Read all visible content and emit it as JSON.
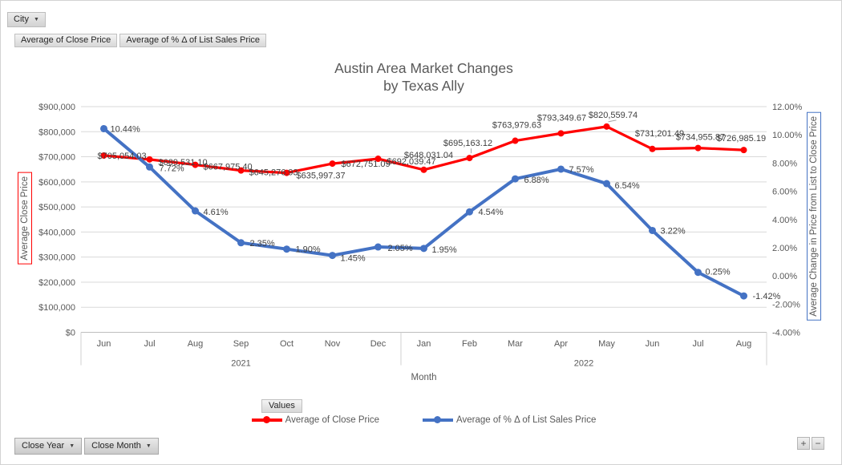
{
  "pivot": {
    "city_button": {
      "label": "City"
    },
    "field_buttons": [
      "Average of Close Price",
      "Average of % Δ of List Sales Price"
    ],
    "values_button": {
      "label": "Values"
    },
    "axis_buttons": [
      "Close Year",
      "Close Month"
    ],
    "expand_button": "+",
    "collapse_button": "−"
  },
  "chart_data": {
    "type": "line",
    "title": "Austin Area Market Changes",
    "subtitle": "by Texas Ally",
    "xlabel": "Month",
    "grid": true,
    "legend_position": "bottom",
    "categories": [
      "Jun",
      "Jul",
      "Aug",
      "Sep",
      "Oct",
      "Nov",
      "Dec",
      "Jan",
      "Feb",
      "Mar",
      "Apr",
      "May",
      "Jun",
      "Jul",
      "Aug"
    ],
    "year_groups": [
      {
        "label": "2021",
        "span": 7
      },
      {
        "label": "2022",
        "span": 8
      }
    ],
    "left_axis": {
      "title": "Average Close Price",
      "min": 0,
      "max": 900000,
      "step": 100000,
      "ticks": [
        "$0",
        "$100,000",
        "$200,000",
        "$300,000",
        "$400,000",
        "$500,000",
        "$600,000",
        "$700,000",
        "$800,000",
        "$900,000"
      ],
      "box_color": "#FF0000"
    },
    "right_axis": {
      "title": "Average Change in Price from List to Close Price",
      "min": -4,
      "max": 12,
      "step": 2,
      "ticks": [
        "-4.00%",
        "-2.00%",
        "0.00%",
        "2.00%",
        "4.00%",
        "6.00%",
        "8.00%",
        "10.00%",
        "12.00%"
      ],
      "box_color": "#4472C4"
    },
    "series": [
      {
        "name": "Average of Close Price",
        "axis": "left",
        "color": "#FF0000",
        "values": [
          705054.03,
          689531.1,
          667975.4,
          645276.93,
          635997.37,
          672751.09,
          692039.47,
          648031.04,
          695163.12,
          763979.63,
          793349.67,
          820559.74,
          731201.49,
          734955.87,
          726985.19
        ],
        "labels": [
          "$705,054.03",
          "$689,531.10",
          "$667,975.40",
          "$645,276.93",
          "$635,997.37",
          "$672,751.09",
          "$692,039.47",
          "$648,031.04",
          "$695,163.12",
          "$763,979.63",
          "$793,349.67",
          "$820,559.74",
          "$731,201.49",
          "$734,955.87",
          "$726,985.19"
        ]
      },
      {
        "name": "Average of % Δ of List Sales Price",
        "axis": "right",
        "color": "#4472C4",
        "values": [
          10.44,
          7.72,
          4.61,
          2.35,
          1.9,
          1.45,
          2.05,
          1.95,
          4.54,
          6.88,
          7.57,
          6.54,
          3.22,
          0.25,
          -1.42
        ],
        "labels": [
          "10.44%",
          "7.72%",
          "4.61%",
          "2.35%",
          "1.90%",
          "1.45%",
          "2.05%",
          "1.95%",
          "4.54%",
          "6.88%",
          "7.57%",
          "6.54%",
          "3.22%",
          "0.25%",
          "-1.42%"
        ]
      }
    ]
  }
}
